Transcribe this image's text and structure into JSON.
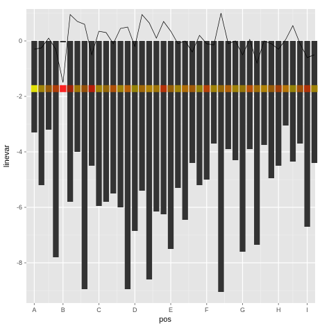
{
  "chart_data": {
    "type": "bar",
    "xlabel": "pos",
    "ylabel": "linevar",
    "ylim": [
      -9.45,
      1.15
    ],
    "y_ticks": [
      0,
      -2,
      -4,
      -6,
      -8
    ],
    "y_tick_labels": [
      "0",
      "-2",
      "-4",
      "-6",
      "-8"
    ],
    "x_categories": [
      "A",
      "B",
      "C",
      "D",
      "E",
      "F",
      "G",
      "H",
      "I"
    ],
    "x_category_positions": [
      1,
      5,
      10,
      15,
      20,
      25,
      30,
      35,
      39
    ],
    "xlim": [
      -0.1,
      40.1
    ],
    "bar_width": 0.8,
    "bars": {
      "x": [
        1,
        2,
        3,
        4,
        5,
        6,
        7,
        8,
        9,
        10,
        11,
        12,
        13,
        14,
        15,
        16,
        17,
        18,
        19,
        20,
        21,
        22,
        23,
        24,
        25,
        26,
        27,
        28,
        29,
        30,
        31,
        32,
        33,
        34,
        35,
        36,
        37,
        38,
        39,
        40
      ],
      "values": [
        -3.3,
        -5.2,
        -3.2,
        -7.8,
        -0.05,
        -5.8,
        -4.0,
        -8.95,
        -4.5,
        -5.95,
        -5.8,
        -5.5,
        -6.0,
        -8.95,
        -6.85,
        -5.4,
        -8.6,
        -6.15,
        -6.25,
        -7.5,
        -5.3,
        -6.45,
        -4.4,
        -5.2,
        -5.0,
        -3.7,
        -9.05,
        -3.9,
        -4.3,
        -7.6,
        -3.9,
        -7.35,
        -3.75,
        -4.95,
        -4.5,
        -3.05,
        -4.35,
        -3.7,
        -6.7,
        -4.4
      ],
      "color": "#333333"
    },
    "line": {
      "x": [
        1,
        2,
        3,
        4,
        5,
        6,
        7,
        8,
        9,
        10,
        11,
        12,
        13,
        14,
        15,
        16,
        17,
        18,
        19,
        20,
        21,
        22,
        23,
        24,
        25,
        26,
        27,
        28,
        29,
        30,
        31,
        32,
        33,
        34,
        35,
        36,
        37,
        38,
        39,
        40
      ],
      "values": [
        -0.3,
        -0.25,
        0.1,
        -0.3,
        -1.5,
        0.95,
        0.7,
        0.6,
        -0.5,
        0.35,
        0.3,
        -0.1,
        0.45,
        0.5,
        -0.2,
        0.95,
        0.65,
        0.1,
        0.7,
        0.35,
        -0.1,
        0.0,
        -0.4,
        0.2,
        -0.1,
        -0.15,
        1.0,
        -0.1,
        0.0,
        -0.5,
        0.05,
        -0.8,
        0.0,
        -0.1,
        -0.3,
        0.05,
        0.55,
        -0.1,
        -0.6,
        -0.5
      ],
      "color": "#000000"
    },
    "strip": {
      "y": -1.72,
      "x": [
        1,
        2,
        3,
        4,
        5,
        6,
        7,
        8,
        9,
        10,
        11,
        12,
        13,
        14,
        15,
        16,
        17,
        18,
        19,
        20,
        21,
        22,
        23,
        24,
        25,
        26,
        27,
        28,
        29,
        30,
        31,
        32,
        33,
        34,
        35,
        36,
        37,
        38,
        39,
        40
      ],
      "colors": [
        "#ffff00",
        "#b38f00",
        "#a66000",
        "#c44000",
        "#ff0000",
        "#b32000",
        "#b38000",
        "#a65500",
        "#cc1a00",
        "#b38f00",
        "#a67000",
        "#c45500",
        "#b38f00",
        "#cc6600",
        "#a68f00",
        "#b37000",
        "#c48f00",
        "#b38000",
        "#cc3300",
        "#a66600",
        "#b38f00",
        "#c47700",
        "#b36000",
        "#a68f00",
        "#cc4400",
        "#b38f00",
        "#a67000",
        "#c46600",
        "#b38f00",
        "#a68000",
        "#cc5500",
        "#b37700",
        "#c48f00",
        "#a66000",
        "#b34000",
        "#cc8000",
        "#a68f00",
        "#b35500",
        "#c43300",
        "#b38f00"
      ]
    },
    "background": "#e5e5e5",
    "grid_major": "#ffffff",
    "grid_minor": "#f2f2f2",
    "grid": true,
    "legend": "none"
  }
}
